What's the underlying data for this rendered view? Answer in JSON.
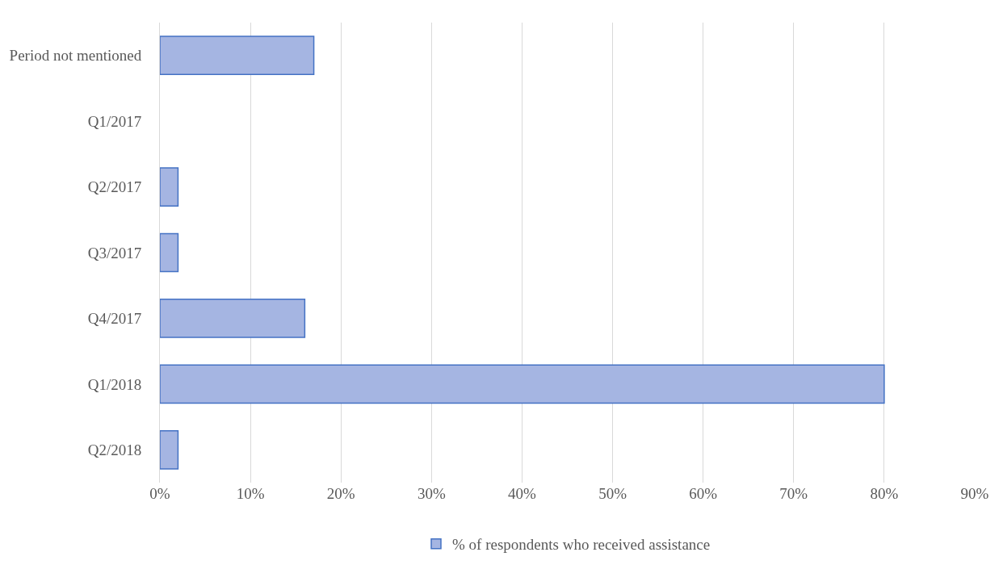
{
  "chart_data": {
    "type": "bar",
    "orientation": "horizontal",
    "categories": [
      "Period not mentioned",
      "Q1/2017",
      "Q2/2017",
      "Q3/2017",
      "Q4/2017",
      "Q1/2018",
      "Q2/2018"
    ],
    "series": [
      {
        "name": "% of respondents who received assistance",
        "color": "#a5b5e2",
        "values": [
          17,
          0,
          2,
          2,
          16,
          80,
          2
        ]
      }
    ],
    "xlim": [
      0,
      90
    ],
    "xticks": [
      {
        "value": 0,
        "label": "0%"
      },
      {
        "value": 10,
        "label": "10%"
      },
      {
        "value": 20,
        "label": "20%"
      },
      {
        "value": 30,
        "label": "30%"
      },
      {
        "value": 40,
        "label": "40%"
      },
      {
        "value": 50,
        "label": "50%"
      },
      {
        "value": 60,
        "label": "60%"
      },
      {
        "value": 70,
        "label": "70%"
      },
      {
        "value": 80,
        "label": "80%"
      },
      {
        "value": 90,
        "label": "90%"
      }
    ],
    "grid": "x",
    "legend": "bottom"
  }
}
